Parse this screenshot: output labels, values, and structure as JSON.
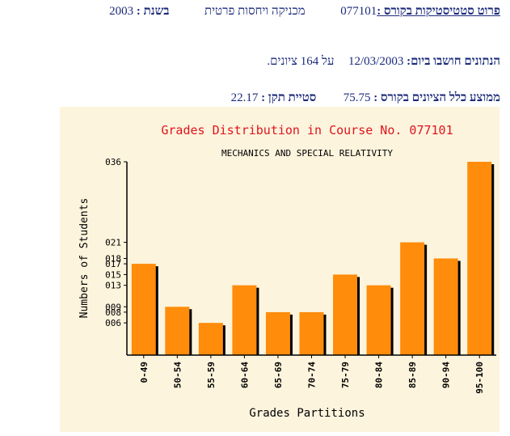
{
  "header": {
    "course_label": "פרוט סטטיסטיקות בקורס :",
    "course_number": "077101",
    "course_name": "מכניקה ויחסות פרטית",
    "year_label": "בשנת :",
    "year": "2003"
  },
  "computed": {
    "label": "הנתונים חושבו ביום:",
    "date": "12/03/2003",
    "count_text": "על 164 ציונים."
  },
  "stats": {
    "mean_label": "ממוצע כלל הציונים בקורס :",
    "mean": "75.75",
    "std_label": "סטיית תקן :",
    "std": "22.17"
  },
  "colors": {
    "background": "#fdf4dd",
    "bar": "#ff8c0a",
    "bar_shadow": "#000000",
    "title": "#e0141e",
    "text": "#000000"
  },
  "chart_data": {
    "type": "bar",
    "title": "Grades Distribution in Course No. 077101",
    "subtitle": "MECHANICS AND SPECIAL RELATIVITY",
    "xlabel": "Grades Partitions",
    "ylabel": "Numbers of Students",
    "categories": [
      "0-49",
      "50-54",
      "55-59",
      "60-64",
      "65-69",
      "70-74",
      "75-79",
      "80-84",
      "85-89",
      "90-94",
      "95-100"
    ],
    "values": [
      17,
      9,
      6,
      13,
      8,
      8,
      15,
      13,
      21,
      18,
      36
    ],
    "y_tick_values": [
      6,
      8,
      9,
      13,
      15,
      17,
      18,
      21,
      36
    ],
    "y_tick_labels": [
      "006",
      "008",
      "009",
      "013",
      "015",
      "017",
      "018",
      "021",
      "036"
    ],
    "ylim": [
      0,
      36
    ],
    "grid": false,
    "legend": "none"
  }
}
